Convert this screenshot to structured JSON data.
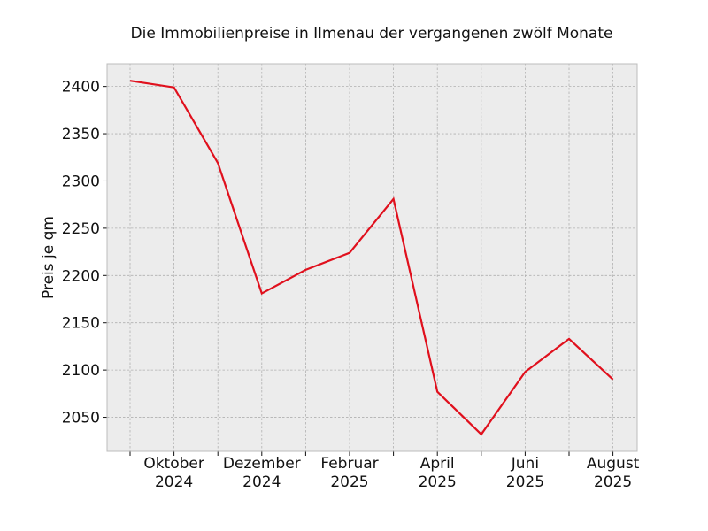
{
  "chart_data": {
    "type": "line",
    "title": "Die Immobilienpreise in Ilmenau der vergangenen zwölf Monate",
    "xlabel": "",
    "ylabel": "Preis je qm",
    "x": [
      "2024-09",
      "2024-10",
      "2024-11",
      "2024-12",
      "2025-01",
      "2025-02",
      "2025-03",
      "2025-04",
      "2025-05",
      "2025-06",
      "2025-07",
      "2025-08"
    ],
    "series": [
      {
        "values": [
          2406,
          2399,
          2319,
          2181,
          2206,
          2224,
          2281,
          2077,
          2032,
          2098,
          2133,
          2090
        ]
      }
    ],
    "x_tick_labels": [
      {
        "line1": "Oktober",
        "line2": "2024"
      },
      {
        "line1": "Dezember",
        "line2": "2024"
      },
      {
        "line1": "Februar",
        "line2": "2025"
      },
      {
        "line1": "April",
        "line2": "2025"
      },
      {
        "line1": "Juni",
        "line2": "2025"
      },
      {
        "line1": "August",
        "line2": "2025"
      }
    ],
    "y_ticks": [
      2050,
      2100,
      2150,
      2200,
      2250,
      2300,
      2350,
      2400
    ],
    "ylim": [
      2014,
      2424
    ],
    "grid": true,
    "colors": {
      "line": "#e0101d",
      "plot_background": "#ececec",
      "grid": "#b0b0b0",
      "frame": "#bcbcbc"
    }
  }
}
